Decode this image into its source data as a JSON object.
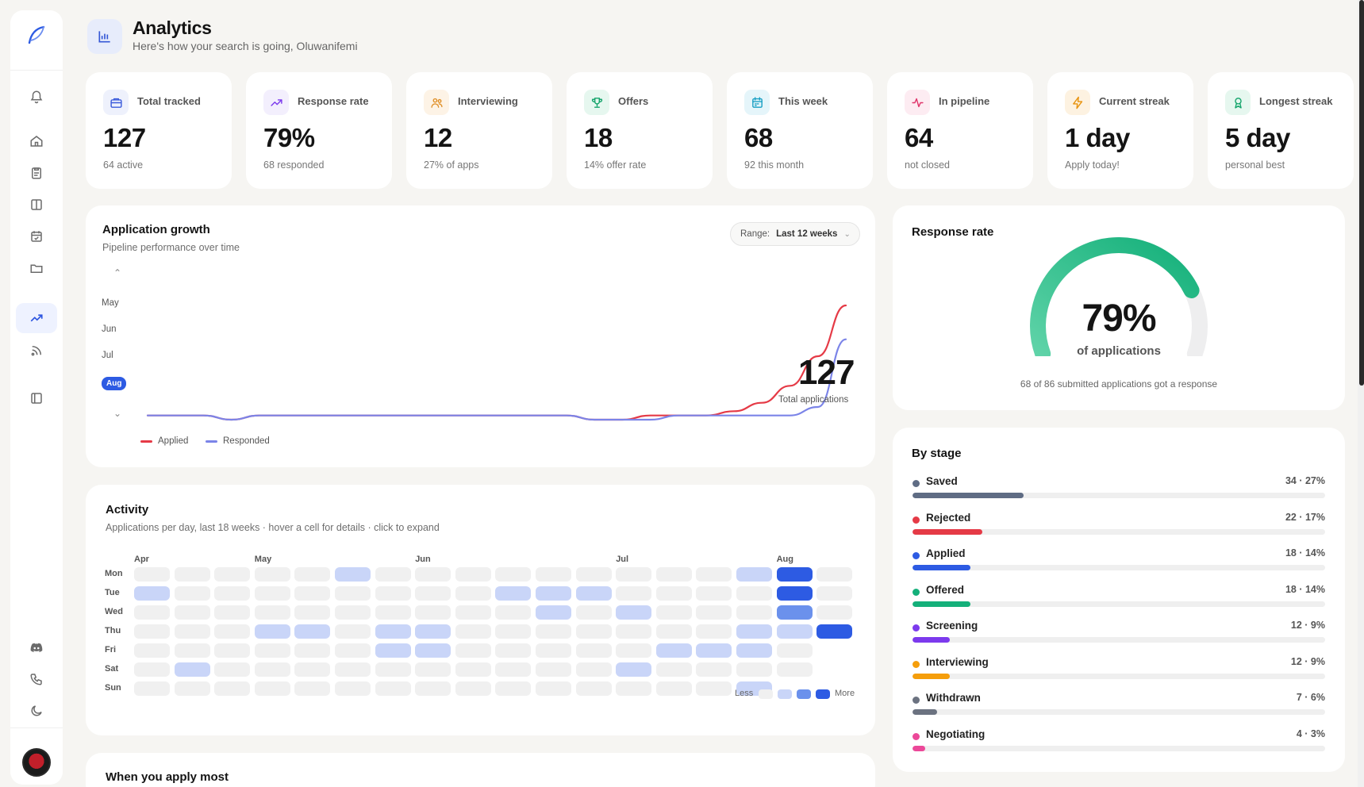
{
  "header": {
    "title": "Analytics",
    "subtitle": "Here's how your search is going, Oluwanifemi"
  },
  "stats": [
    {
      "label": "Total tracked",
      "value": "127",
      "sub": "64 active",
      "icon": "briefcase-icon",
      "color": "#3b5bdb",
      "bg": "#eef1fc"
    },
    {
      "label": "Response rate",
      "value": "79%",
      "sub": "68 responded",
      "icon": "trend-icon",
      "color": "#7c3aed",
      "bg": "#f3effd"
    },
    {
      "label": "Interviewing",
      "value": "12",
      "sub": "27% of apps",
      "icon": "users-icon",
      "color": "#e0912b",
      "bg": "#fdf3e6"
    },
    {
      "label": "Offers",
      "value": "18",
      "sub": "14% offer rate",
      "icon": "trophy-icon",
      "color": "#14a46b",
      "bg": "#e6f7ef"
    },
    {
      "label": "This week",
      "value": "68",
      "sub": "92 this month",
      "icon": "calendar-icon",
      "color": "#1aa0c4",
      "bg": "#e5f5fa"
    },
    {
      "label": "In pipeline",
      "value": "64",
      "sub": "not closed",
      "icon": "pulse-icon",
      "color": "#e0356b",
      "bg": "#fdecf2"
    },
    {
      "label": "Current streak",
      "value": "1 day",
      "sub": "Apply today!",
      "icon": "bolt-icon",
      "color": "#e8930e",
      "bg": "#fdf2e1"
    },
    {
      "label": "Longest streak",
      "value": "5 day",
      "sub": "personal best",
      "icon": "award-icon",
      "color": "#14a46b",
      "bg": "#e6f7ef"
    }
  ],
  "growth": {
    "title": "Application growth",
    "subtitle": "Pipeline performance over time",
    "range_label": "Range:",
    "range_value": "Last 12 weeks",
    "months": [
      "May",
      "Jun",
      "Jul",
      "Aug"
    ],
    "selected_month": "Aug",
    "total": "127",
    "total_caption": "Total applications",
    "legend": [
      {
        "name": "Applied",
        "color": "#e53a46"
      },
      {
        "name": "Responded",
        "color": "#7b84e8"
      }
    ]
  },
  "chart_data": {
    "type": "line",
    "series": [
      {
        "name": "Applied",
        "color": "#e53a46",
        "values": [
          1,
          1,
          1,
          0,
          1,
          1,
          1,
          1,
          1,
          1,
          1,
          1,
          1,
          1,
          1,
          1,
          0,
          0,
          1,
          1,
          1,
          2,
          4,
          8,
          15,
          27
        ]
      },
      {
        "name": "Responded",
        "color": "#7b84e8",
        "values": [
          1,
          1,
          1,
          0,
          1,
          1,
          1,
          1,
          1,
          1,
          1,
          1,
          1,
          1,
          1,
          1,
          0,
          0,
          0,
          1,
          1,
          1,
          1,
          1,
          3,
          19
        ]
      }
    ],
    "ylim": [
      0,
      30
    ]
  },
  "response": {
    "title": "Response rate",
    "percent": 79,
    "value_label": "79%",
    "caption": "of applications",
    "footnote": "68 of 86 submitted applications got a response"
  },
  "activity": {
    "title": "Activity",
    "subtitle": "Applications per day, last 18 weeks · hover a cell for details · click to expand",
    "months": [
      {
        "label": "Apr",
        "col": 0
      },
      {
        "label": "May",
        "col": 3
      },
      {
        "label": "Jun",
        "col": 7
      },
      {
        "label": "Jul",
        "col": 12
      },
      {
        "label": "Aug",
        "col": 16
      }
    ],
    "days": [
      "Mon",
      "Tue",
      "Wed",
      "Thu",
      "Fri",
      "Sat",
      "Sun"
    ],
    "legend_less": "Less",
    "legend_more": "More",
    "grid": [
      [
        0,
        0,
        0,
        0,
        0,
        1,
        0,
        0,
        0,
        0,
        0,
        0,
        0,
        0,
        0,
        1,
        3,
        0
      ],
      [
        1,
        0,
        0,
        0,
        0,
        0,
        0,
        0,
        0,
        1,
        1,
        1,
        0,
        0,
        0,
        0,
        3,
        0
      ],
      [
        0,
        0,
        0,
        0,
        0,
        0,
        0,
        0,
        0,
        0,
        1,
        0,
        1,
        0,
        0,
        0,
        2,
        0
      ],
      [
        0,
        0,
        0,
        1,
        1,
        0,
        1,
        1,
        0,
        0,
        0,
        0,
        0,
        0,
        0,
        1,
        1,
        3
      ],
      [
        0,
        0,
        0,
        0,
        0,
        0,
        1,
        1,
        0,
        0,
        0,
        0,
        0,
        1,
        1,
        1,
        0,
        -1
      ],
      [
        0,
        1,
        0,
        0,
        0,
        0,
        0,
        0,
        0,
        0,
        0,
        0,
        1,
        0,
        0,
        0,
        0,
        -1
      ],
      [
        0,
        0,
        0,
        0,
        0,
        0,
        0,
        0,
        0,
        0,
        0,
        0,
        0,
        0,
        0,
        1,
        -1,
        -1
      ]
    ]
  },
  "stages": {
    "title": "By stage",
    "items": [
      {
        "name": "Saved",
        "value": "34 · 27%",
        "pct": 27,
        "color": "#5f6c84"
      },
      {
        "name": "Rejected",
        "value": "22 · 17%",
        "pct": 17,
        "color": "#e53a46"
      },
      {
        "name": "Applied",
        "value": "18 · 14%",
        "pct": 14,
        "color": "#2d5be3"
      },
      {
        "name": "Offered",
        "value": "18 · 14%",
        "pct": 14,
        "color": "#14b07a"
      },
      {
        "name": "Screening",
        "value": "12 · 9%",
        "pct": 9,
        "color": "#7c3aed"
      },
      {
        "name": "Interviewing",
        "value": "12 · 9%",
        "pct": 9,
        "color": "#f59e0b"
      },
      {
        "name": "Withdrawn",
        "value": "7 · 6%",
        "pct": 6,
        "color": "#6b7280"
      },
      {
        "name": "Negotiating",
        "value": "4 · 3%",
        "pct": 3,
        "color": "#ec4899"
      }
    ]
  },
  "next_section": {
    "title": "When you apply most"
  }
}
